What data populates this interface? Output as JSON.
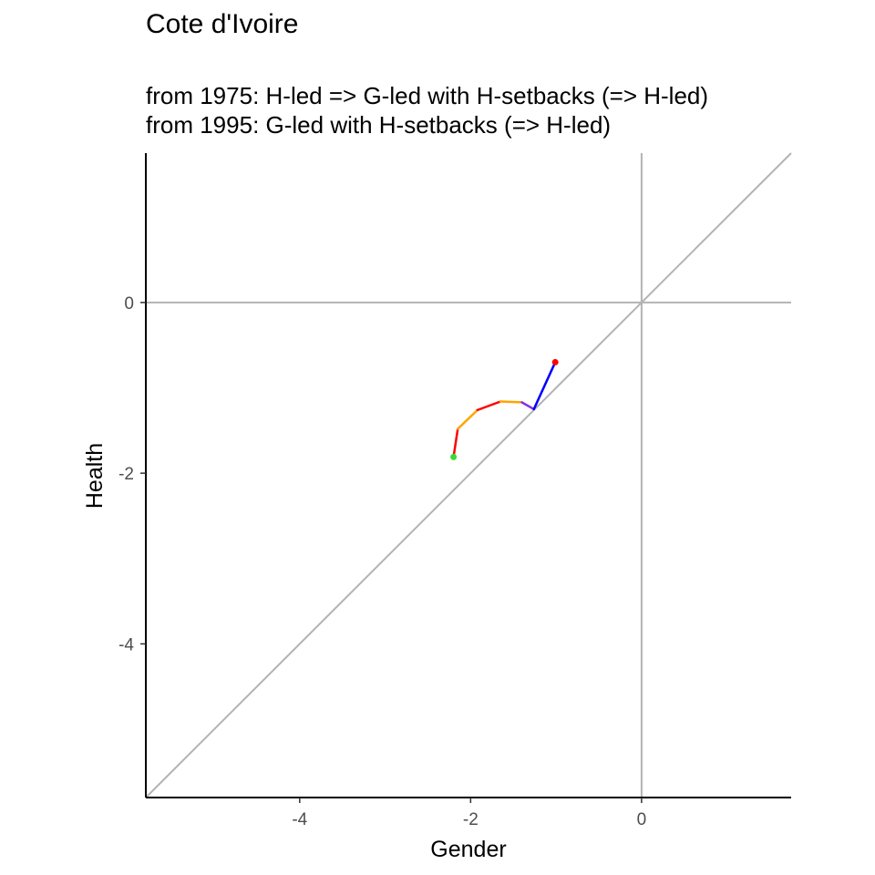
{
  "chart_data": {
    "type": "line",
    "title": "Cote d'Ivoire",
    "subtitle_lines": [
      "from 1975:  H-led => G-led with H-setbacks (=> H-led)",
      "from 1995:  G-led with H-setbacks (=> H-led)"
    ],
    "xlabel": "Gender",
    "ylabel": "Health",
    "xlim": [
      -5.8,
      1.75
    ],
    "ylim": [
      -5.8,
      1.75
    ],
    "x_ticks": [
      -4,
      -2,
      0
    ],
    "y_ticks": [
      0,
      -2,
      -4
    ],
    "reference_lines": {
      "diagonal": true,
      "zero_x": true,
      "zero_y": true,
      "color": "#b3b3b3"
    },
    "path": [
      {
        "x": -2.2,
        "y": -1.81
      },
      {
        "x": -2.15,
        "y": -1.48
      },
      {
        "x": -1.92,
        "y": -1.26
      },
      {
        "x": -1.65,
        "y": -1.16
      },
      {
        "x": -1.4,
        "y": -1.17
      },
      {
        "x": -1.26,
        "y": -1.25
      },
      {
        "x": -1.01,
        "y": -0.7
      }
    ],
    "segment_colors": [
      "#ff0000",
      "#ffa500",
      "#ff0000",
      "#ffa500",
      "#8a2be2",
      "#0000ff"
    ],
    "start_point_color": "#33dd33",
    "end_point_color": "#ff0000"
  }
}
